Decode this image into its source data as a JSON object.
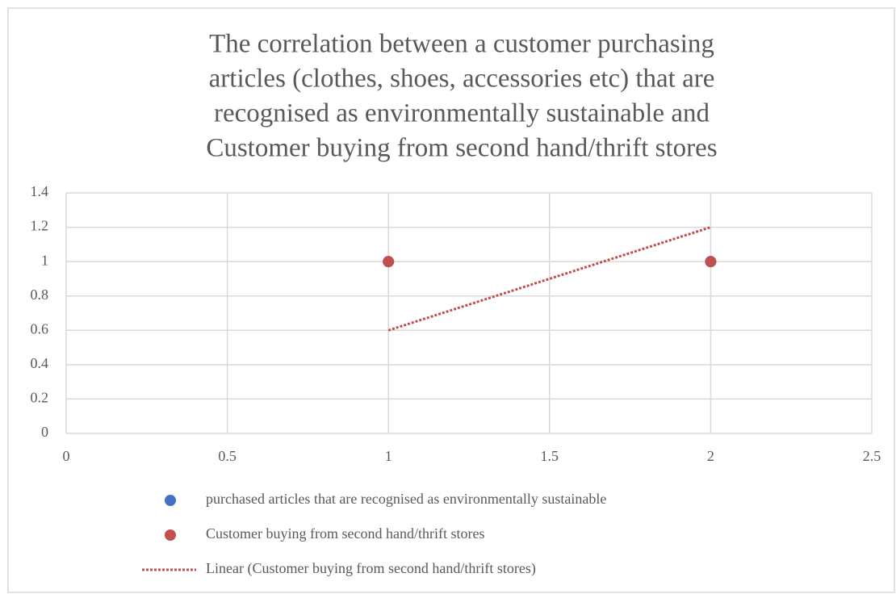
{
  "chart_data": {
    "type": "scatter",
    "title": [
      "The correlation between a customer purchasing",
      "articles (clothes, shoes, accessories etc) that are",
      "recognised as environmentally sustainable and",
      "Customer buying from second hand/thrift stores"
    ],
    "series": [
      {
        "name": "purchased articles that are recognised as environmentally sustainable",
        "color": "#4472c4",
        "x": [
          1,
          2
        ],
        "values": [
          1,
          1
        ]
      },
      {
        "name": "Customer buying from second hand/thrift stores",
        "color": "#c0504d",
        "x": [
          1,
          2
        ],
        "values": [
          1,
          1
        ]
      },
      {
        "name": "Linear (Customer buying from second hand/thrift stores)",
        "color": "#c0504d",
        "style": "dotted",
        "x": [
          1,
          2
        ],
        "values": [
          0.6,
          1.2
        ]
      }
    ],
    "xlim": [
      0,
      2.5
    ],
    "xticks": [
      0,
      0.5,
      1,
      1.5,
      2,
      2.5
    ],
    "ylim": [
      0,
      1.4
    ],
    "yticks": [
      0,
      0.2,
      0.4,
      0.6,
      0.8,
      1,
      1.2,
      1.4
    ],
    "grid": true,
    "legend": "bottom"
  }
}
